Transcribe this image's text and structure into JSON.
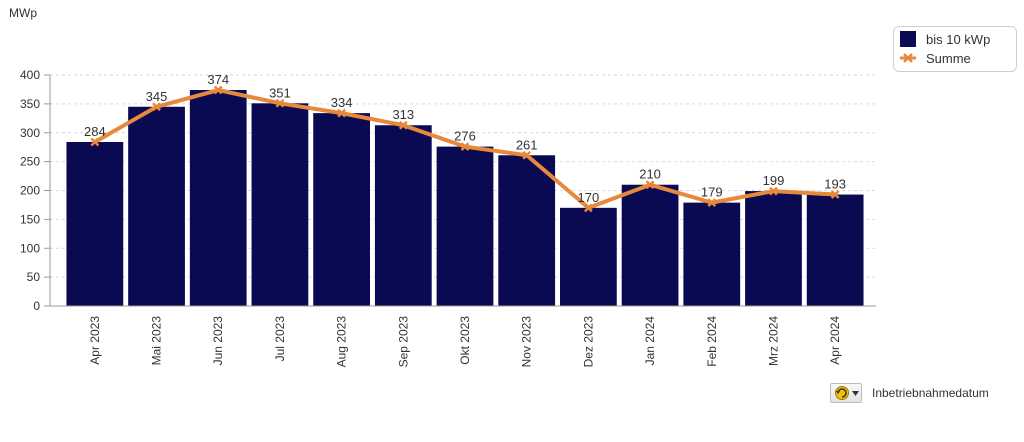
{
  "unit_label": "MWp",
  "footer": {
    "label": "Inbetriebnahmedatum",
    "sort_icon": "cycle-arrow-dropdown-icon"
  },
  "legend": {
    "bar_series": "bis 10 kWp",
    "line_series": "Summe"
  },
  "colors": {
    "bar": "#0a0a52",
    "line": "#e8883c",
    "grid": "#d9d9d9",
    "text": "#333333"
  },
  "chart_data": {
    "type": "bar",
    "categories": [
      "Apr 2023",
      "Mai 2023",
      "Jun 2023",
      "Jul 2023",
      "Aug 2023",
      "Sep 2023",
      "Okt 2023",
      "Nov 2023",
      "Dez 2023",
      "Jan 2024",
      "Feb 2024",
      "Mrz 2024",
      "Apr 2024"
    ],
    "series": [
      {
        "name": "bis 10 kWp",
        "type": "bar",
        "values": [
          284,
          345,
          374,
          351,
          334,
          313,
          276,
          261,
          170,
          210,
          179,
          199,
          193
        ]
      },
      {
        "name": "Summe",
        "type": "line",
        "values": [
          284,
          345,
          374,
          351,
          334,
          313,
          276,
          261,
          170,
          210,
          179,
          199,
          193
        ]
      }
    ],
    "data_labels": [
      "284",
      "345",
      "374",
      "351",
      "334",
      "313",
      "276",
      "261",
      "170",
      "210",
      "179",
      "199",
      "193"
    ],
    "ylabel": "MWp",
    "ylim": [
      0,
      400
    ],
    "yticks": [
      "0",
      "50",
      "100",
      "150",
      "200",
      "250",
      "300",
      "350",
      "400"
    ],
    "grid": "horizontal dashed",
    "legend_position": "top-right"
  }
}
